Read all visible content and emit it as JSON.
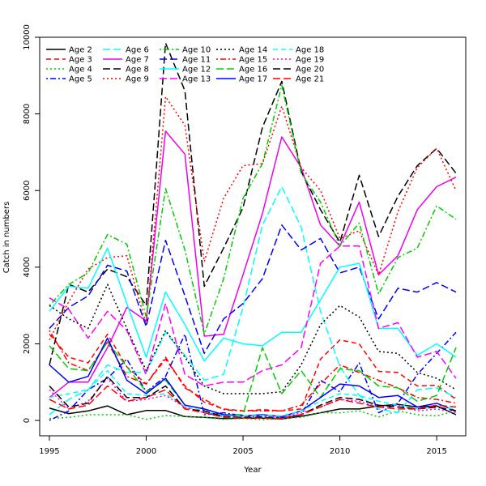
{
  "chart_data": {
    "type": "line",
    "title": "",
    "xlabel": "Year",
    "ylabel": "Catch in numbers",
    "xlim": [
      1994.5,
      2016.5
    ],
    "ylim": [
      -400,
      10000
    ],
    "x_ticks": [
      1995,
      2000,
      2005,
      2010,
      2015
    ],
    "y_ticks": [
      0,
      2000,
      4000,
      6000,
      8000,
      10000
    ],
    "legend_position": "top-left",
    "x": [
      1995,
      1996,
      1997,
      1998,
      1999,
      2000,
      2001,
      2002,
      2003,
      2004,
      2005,
      2006,
      2007,
      2008,
      2009,
      2010,
      2011,
      2012,
      2013,
      2014,
      2015,
      2016
    ],
    "series": [
      {
        "name": "Age 2",
        "color": "#000000",
        "dash": "solid",
        "values": [
          320,
          180,
          250,
          380,
          150,
          260,
          260,
          100,
          80,
          50,
          60,
          60,
          40,
          110,
          200,
          300,
          300,
          380,
          420,
          350,
          380,
          150
        ]
      },
      {
        "name": "Age 3",
        "color": "#ff0000",
        "dash": "dashed",
        "values": [
          2250,
          1650,
          1500,
          2250,
          1400,
          950,
          1600,
          900,
          480,
          300,
          250,
          280,
          250,
          300,
          1600,
          2100,
          2000,
          1280,
          1250,
          900,
          920,
          550
        ]
      },
      {
        "name": "Age 4",
        "color": "#00cd00",
        "dash": "dotted",
        "values": [
          50,
          80,
          150,
          150,
          150,
          30,
          130,
          100,
          80,
          30,
          50,
          20,
          50,
          80,
          200,
          200,
          250,
          90,
          250,
          150,
          120,
          250
        ]
      },
      {
        "name": "Age 5",
        "color": "#0000ff",
        "dash": "dashdot",
        "values": [
          0,
          250,
          800,
          1100,
          1600,
          750,
          1150,
          2250,
          150,
          200,
          120,
          100,
          70,
          150,
          1050,
          750,
          1500,
          200,
          450,
          1200,
          1750,
          2300
        ]
      },
      {
        "name": "Age 6",
        "color": "#00ffff",
        "dash": "longdash",
        "values": [
          150,
          550,
          800,
          1450,
          1250,
          1250,
          2300,
          1700,
          1050,
          1200,
          2950,
          5100,
          6100,
          5050,
          2850,
          1400,
          650,
          300,
          200,
          800,
          850,
          600
        ]
      },
      {
        "name": "Age 7",
        "color": "#ee00ee",
        "dash": "solid",
        "values": [
          600,
          1000,
          1000,
          1900,
          2950,
          2600,
          7550,
          6950,
          2200,
          2250,
          3800,
          5400,
          7400,
          6600,
          5100,
          4550,
          5700,
          3800,
          4300,
          5500,
          6100,
          6350
        ]
      },
      {
        "name": "Age 8",
        "color": "#000000",
        "dash": "longdash",
        "values": [
          1450,
          3550,
          3350,
          3950,
          3750,
          3000,
          9850,
          8600,
          3500,
          4500,
          5550,
          7650,
          8850,
          6500,
          5500,
          4650,
          6400,
          4800,
          5850,
          6650,
          7100,
          6450
        ]
      },
      {
        "name": "Age 9",
        "color": "#ff0000",
        "dash": "dotted",
        "values": [
          2100,
          3100,
          3950,
          4250,
          4300,
          2500,
          8450,
          7700,
          4150,
          5800,
          6650,
          6700,
          8200,
          6600,
          6000,
          4750,
          4950,
          3800,
          5450,
          6600,
          7100,
          6000
        ]
      },
      {
        "name": "Age 10",
        "color": "#00cd00",
        "dash": "dashdot",
        "values": [
          3000,
          3550,
          3850,
          4850,
          4600,
          2700,
          6050,
          4450,
          2250,
          3700,
          5800,
          6700,
          8750,
          6450,
          5700,
          4550,
          5150,
          3300,
          4250,
          4500,
          5600,
          5250
        ]
      },
      {
        "name": "Age 11",
        "color": "#0000ff",
        "dash": "longdash",
        "values": [
          2400,
          2950,
          3250,
          4050,
          3900,
          2450,
          4700,
          3250,
          1750,
          2650,
          3050,
          3700,
          5100,
          4450,
          4750,
          3850,
          4000,
          2650,
          3450,
          3350,
          3600,
          3350
        ]
      },
      {
        "name": "Age 12",
        "color": "#00ffff",
        "dash": "solid",
        "values": [
          2850,
          3500,
          3450,
          4500,
          3050,
          1650,
          3350,
          2500,
          1550,
          2150,
          2000,
          1950,
          2300,
          2300,
          3150,
          4000,
          4100,
          2400,
          2400,
          1700,
          2000,
          1650
        ]
      },
      {
        "name": "Age 13",
        "color": "#ff00ff",
        "dash": "longdash",
        "values": [
          3200,
          2900,
          2150,
          2850,
          2350,
          1200,
          3050,
          1200,
          900,
          1000,
          1000,
          1300,
          1450,
          1900,
          4100,
          4550,
          4550,
          2400,
          2550,
          1650,
          1800,
          1100
        ]
      },
      {
        "name": "Age 14",
        "color": "#000000",
        "dash": "dotted",
        "values": [
          3000,
          2650,
          2400,
          3550,
          2400,
          1300,
          2350,
          1650,
          900,
          700,
          700,
          700,
          750,
          1450,
          2500,
          3000,
          2700,
          1800,
          1750,
          1250,
          1100,
          800
        ]
      },
      {
        "name": "Age 15",
        "color": "#ff0000",
        "dash": "dashdot",
        "values": [
          2350,
          1500,
          1300,
          2050,
          1150,
          950,
          1650,
          850,
          550,
          280,
          250,
          250,
          250,
          400,
          950,
          1450,
          1250,
          1050,
          850,
          600,
          550,
          450
        ]
      },
      {
        "name": "Age 16",
        "color": "#00cd00",
        "dash": "longdash",
        "values": [
          1950,
          1350,
          1300,
          2050,
          1400,
          750,
          1050,
          400,
          300,
          150,
          150,
          1900,
          700,
          1300,
          600,
          1350,
          1300,
          900,
          850,
          500,
          650,
          1900
        ]
      },
      {
        "name": "Age 17",
        "color": "#0000ff",
        "dash": "solid",
        "values": [
          1450,
          1000,
          1150,
          2150,
          1050,
          700,
          1100,
          400,
          300,
          150,
          120,
          150,
          100,
          250,
          600,
          950,
          900,
          600,
          650,
          350,
          450,
          250
        ]
      },
      {
        "name": "Age 18",
        "color": "#00ffff",
        "dash": "dashed",
        "values": [
          600,
          700,
          800,
          1300,
          700,
          650,
          700,
          350,
          250,
          120,
          120,
          130,
          120,
          250,
          500,
          700,
          650,
          500,
          400,
          300,
          350,
          300
        ]
      },
      {
        "name": "Age 19",
        "color": "#ff00ff",
        "dash": "dotted",
        "values": [
          800,
          300,
          500,
          1100,
          500,
          550,
          650,
          350,
          200,
          100,
          80,
          80,
          70,
          200,
          350,
          550,
          500,
          350,
          400,
          250,
          300,
          200
        ]
      },
      {
        "name": "Age 20",
        "color": "#000000",
        "dash": "longdash",
        "values": [
          900,
          350,
          450,
          1150,
          600,
          600,
          900,
          300,
          250,
          100,
          80,
          80,
          60,
          150,
          400,
          600,
          550,
          400,
          350,
          300,
          350,
          250
        ]
      },
      {
        "name": "Age 21",
        "color": "#ff0000",
        "dash": "longdash",
        "values": [
          550,
          300,
          400,
          900,
          500,
          600,
          800,
          300,
          200,
          80,
          60,
          60,
          50,
          150,
          350,
          550,
          450,
          350,
          300,
          300,
          400,
          350
        ]
      }
    ]
  }
}
